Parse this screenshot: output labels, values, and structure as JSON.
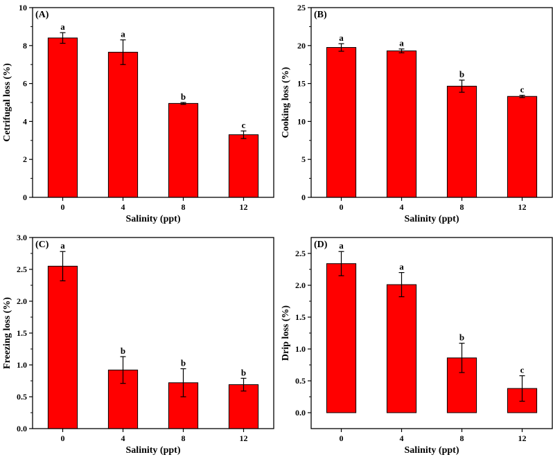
{
  "chart_data": [
    {
      "type": "bar",
      "panel": "(A)",
      "xlabel": "Salinity (ppt)",
      "ylabel": "Cetrifugal loss (%)",
      "categories": [
        "0",
        "4",
        "8",
        "12"
      ],
      "values": [
        8.4,
        7.65,
        4.95,
        3.3
      ],
      "errors": [
        0.28,
        0.65,
        0.05,
        0.2
      ],
      "labels": [
        "a",
        "a",
        "b",
        "c"
      ],
      "ylim": [
        0,
        10
      ],
      "yticks": [
        "0",
        "2",
        "4",
        "6",
        "8",
        "10"
      ],
      "bar_color": "#ff0000",
      "grid": false
    },
    {
      "type": "bar",
      "panel": "(B)",
      "xlabel": "Salinity (ppt)",
      "ylabel": "Cooking loss (%)",
      "categories": [
        "0",
        "4",
        "8",
        "12"
      ],
      "values": [
        19.75,
        19.3,
        14.65,
        13.3
      ],
      "errors": [
        0.5,
        0.25,
        0.8,
        0.15
      ],
      "labels": [
        "a",
        "a",
        "b",
        "c"
      ],
      "ylim": [
        0,
        25
      ],
      "yticks": [
        "0",
        "5",
        "10",
        "15",
        "20",
        "25"
      ],
      "bar_color": "#ff0000",
      "grid": false
    },
    {
      "type": "bar",
      "panel": "(C)",
      "xlabel": "Salinity (ppt)",
      "ylabel": "Freezing loss (%)",
      "categories": [
        "0",
        "4",
        "8",
        "12"
      ],
      "values": [
        2.55,
        0.92,
        0.72,
        0.69
      ],
      "errors": [
        0.23,
        0.21,
        0.22,
        0.1
      ],
      "labels": [
        "a",
        "b",
        "b",
        "b"
      ],
      "ylim": [
        0,
        3.0
      ],
      "yticks": [
        "0.0",
        "0.5",
        "1.0",
        "1.5",
        "2.0",
        "2.5",
        "3.0"
      ],
      "bar_color": "#ff0000",
      "grid": false
    },
    {
      "type": "bar",
      "panel": "(D)",
      "xlabel": "Salinity (ppt)",
      "ylabel": "Drip loss (%)",
      "categories": [
        "0",
        "4",
        "8",
        "12"
      ],
      "values": [
        2.34,
        2.01,
        0.86,
        0.38
      ],
      "errors": [
        0.19,
        0.19,
        0.23,
        0.2
      ],
      "labels": [
        "a",
        "a",
        "b",
        "c"
      ],
      "ylim": [
        -0.25,
        2.75
      ],
      "yticks": [
        "0.0",
        "0.5",
        "1.0",
        "1.5",
        "2.0",
        "2.5"
      ],
      "bar_color": "#ff0000",
      "grid": false
    }
  ]
}
